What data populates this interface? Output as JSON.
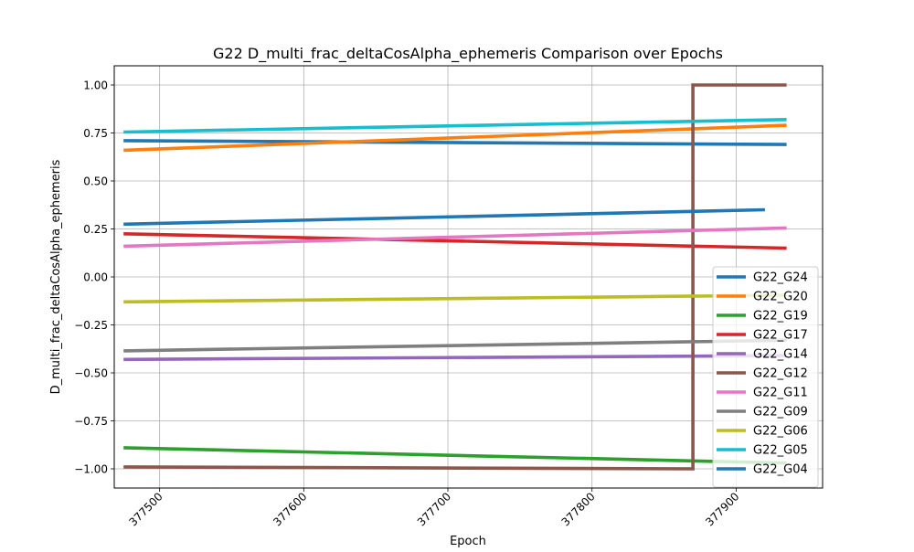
{
  "chart_data": {
    "type": "line",
    "title": "G22 D_multi_frac_deltaCosAlpha_ephemeris Comparison over Epochs",
    "xlabel": "Epoch",
    "ylabel": "D_multi_frac_deltaCosAlpha_ephemeris",
    "xlim": [
      377468.5,
      377960
    ],
    "ylim": [
      -1.1,
      1.1
    ],
    "x_ticks": [
      377500,
      377600,
      377700,
      377800,
      377900
    ],
    "x_tick_labels": [
      "377500",
      "377600",
      "377700",
      "377800",
      "377900"
    ],
    "y_ticks": [
      1.0,
      0.75,
      0.5,
      0.25,
      0.0,
      -0.25,
      -0.5,
      -0.75,
      -1.0
    ],
    "y_tick_labels": [
      "1.00",
      "0.75",
      "0.50",
      "0.25",
      "0.00",
      "−0.25",
      "−0.50",
      "−0.75",
      "−1.00"
    ],
    "grid": true,
    "legend_position": "lower-right",
    "series": [
      {
        "name": "G22_G24",
        "color": "#1f77b4",
        "x": [
          377475,
          377935
        ],
        "y": [
          0.71,
          0.69
        ]
      },
      {
        "name": "G22_G20",
        "color": "#ff7f0e",
        "x": [
          377475,
          377935
        ],
        "y": [
          0.66,
          0.79
        ]
      },
      {
        "name": "G22_G19",
        "color": "#2ca02c",
        "x": [
          377475,
          377935
        ],
        "y": [
          -0.89,
          -0.97
        ]
      },
      {
        "name": "G22_G17",
        "color": "#d62728",
        "x": [
          377475,
          377935
        ],
        "y": [
          0.225,
          0.15
        ]
      },
      {
        "name": "G22_G14",
        "color": "#9467bd",
        "x": [
          377475,
          377935
        ],
        "y": [
          -0.43,
          -0.41
        ]
      },
      {
        "name": "G22_G12",
        "color": "#8c564b",
        "x": [
          377475,
          377870,
          377870,
          377935
        ],
        "y": [
          -0.99,
          -1.0,
          1.0,
          1.0
        ]
      },
      {
        "name": "G22_G11",
        "color": "#e377c2",
        "x": [
          377475,
          377935
        ],
        "y": [
          0.16,
          0.255
        ]
      },
      {
        "name": "G22_G09",
        "color": "#7f7f7f",
        "x": [
          377475,
          377935
        ],
        "y": [
          -0.385,
          -0.33
        ]
      },
      {
        "name": "G22_G06",
        "color": "#bcbd22",
        "x": [
          377475,
          377935
        ],
        "y": [
          -0.13,
          -0.095
        ]
      },
      {
        "name": "G22_G05",
        "color": "#17becf",
        "x": [
          377475,
          377935
        ],
        "y": [
          0.755,
          0.82
        ]
      },
      {
        "name": "G22_G04",
        "color": "#1f77b4",
        "x": [
          377475,
          377920
        ],
        "y": [
          0.275,
          0.35
        ]
      }
    ]
  }
}
